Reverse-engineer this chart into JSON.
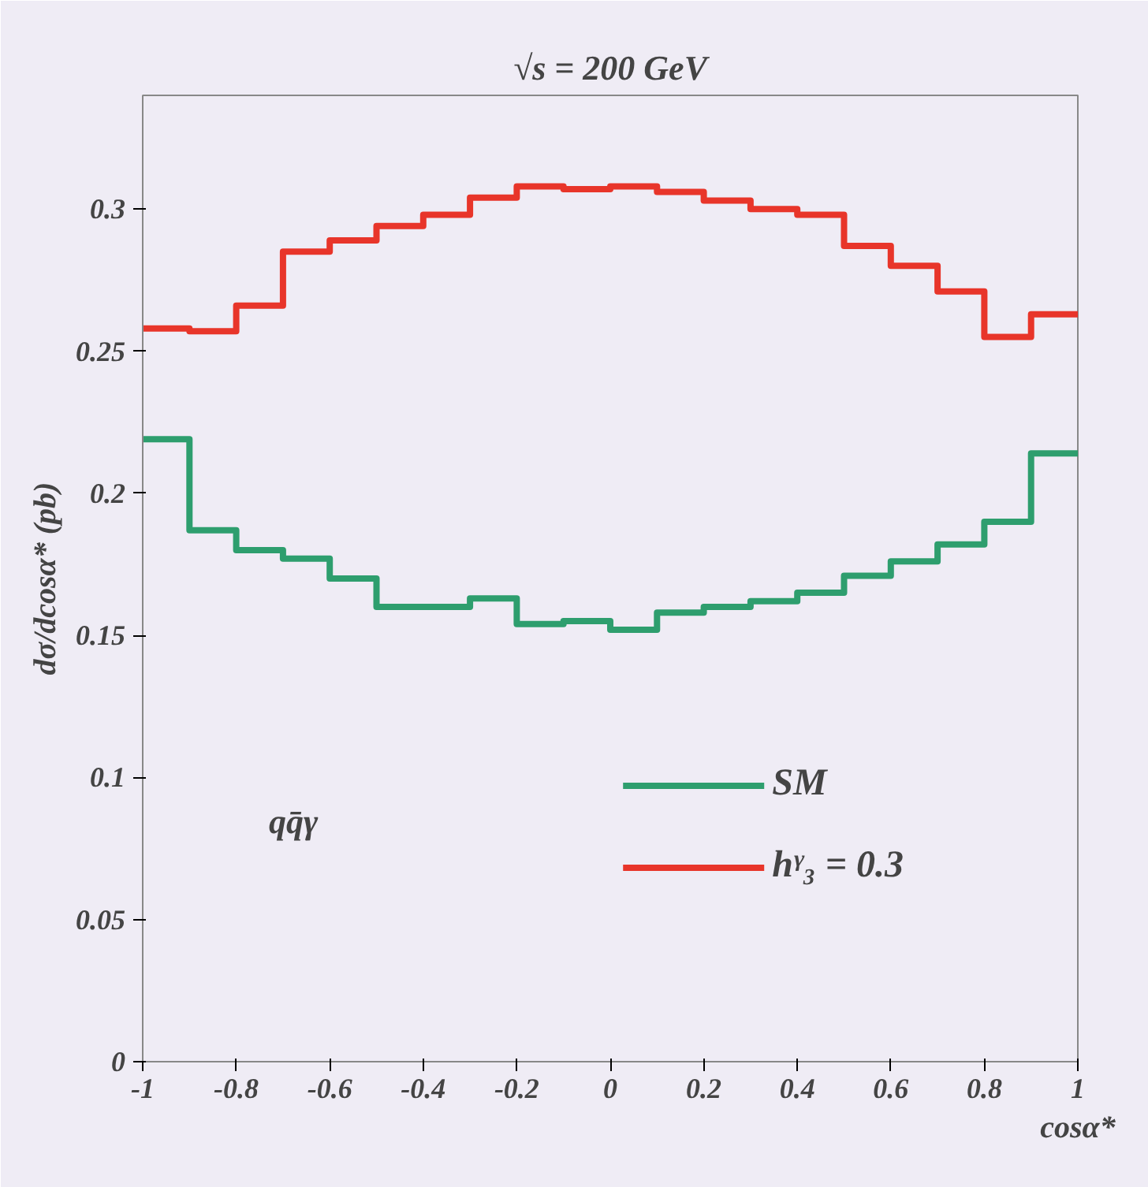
{
  "chart_data": {
    "type": "histogram",
    "title": "√s = 200 GeV",
    "xlabel": "cosα*",
    "ylabel": "dσ/dcosα* (pb)",
    "bins": [
      -1,
      -0.9,
      -0.8,
      -0.7,
      -0.6,
      -0.5,
      -0.4,
      -0.3,
      -0.2,
      -0.1,
      0,
      0.1,
      0.2,
      0.3,
      0.4,
      0.5,
      0.6,
      0.7,
      0.8,
      0.9,
      1
    ],
    "series": [
      {
        "name": "SM",
        "color": "#2e9e6e",
        "values": [
          0.219,
          0.187,
          0.18,
          0.177,
          0.17,
          0.16,
          0.16,
          0.163,
          0.154,
          0.155,
          0.152,
          0.158,
          0.16,
          0.162,
          0.165,
          0.171,
          0.176,
          0.182,
          0.19,
          0.214
        ]
      },
      {
        "name": "hᵞ₃ = 0.3",
        "color": "#e8352a",
        "values": [
          0.258,
          0.257,
          0.266,
          0.285,
          0.289,
          0.294,
          0.298,
          0.304,
          0.308,
          0.307,
          0.308,
          0.306,
          0.303,
          0.3,
          0.298,
          0.287,
          0.28,
          0.271,
          0.255,
          0.263
        ]
      }
    ],
    "annotations": [
      "qq̄γ"
    ],
    "xlim": [
      -1,
      1
    ],
    "ylim": [
      0,
      0.34
    ],
    "xticks": [
      -1,
      -0.8,
      -0.6,
      -0.4,
      -0.2,
      0,
      0.2,
      0.4,
      0.6,
      0.8,
      1
    ],
    "yticks": [
      0,
      0.05,
      0.1,
      0.15,
      0.2,
      0.25,
      0.3
    ],
    "legend": "bottom right",
    "grid": false
  }
}
